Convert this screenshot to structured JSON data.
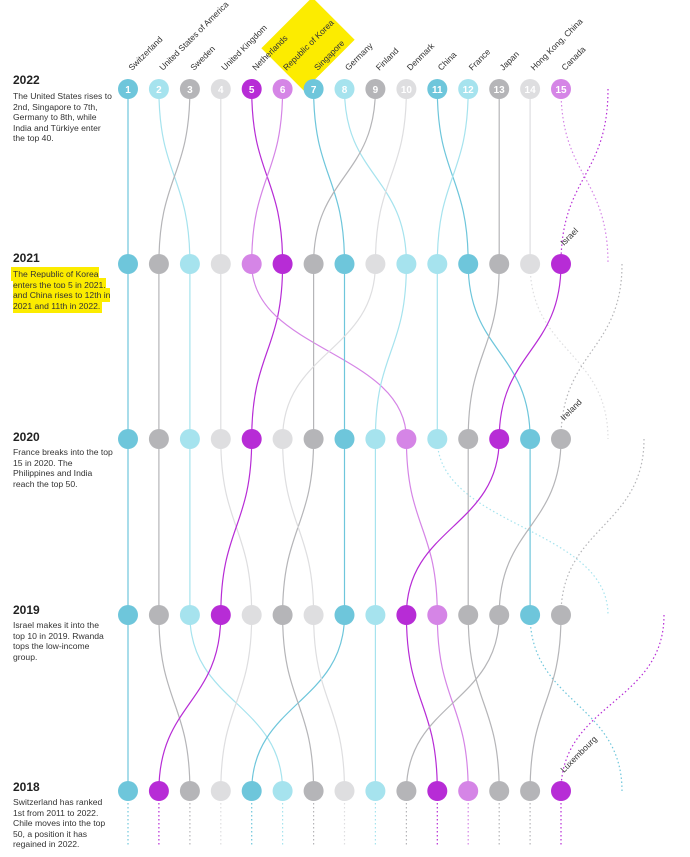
{
  "colors": {
    "blue": "#6ec6db",
    "light_blue": "#a6e3ee",
    "gray": "#b5b5b8",
    "light_gray": "#dedee0",
    "purple": "#b72cd6",
    "light_purple": "#d585e6",
    "highlight": "#fcec00"
  },
  "chart_data": {
    "type": "bump",
    "ranks": [
      1,
      2,
      3,
      4,
      5,
      6,
      7,
      8,
      9,
      10,
      11,
      12,
      13,
      14,
      15
    ],
    "years": [
      "2022",
      "2021",
      "2020",
      "2019",
      "2018"
    ],
    "top_labels": [
      "Switzerland",
      "United States of America",
      "Sweden",
      "United Kingdom",
      "Netherlands",
      "Republic of Korea",
      "Singapore",
      "Germany",
      "Finland",
      "Denmark",
      "China",
      "France",
      "Japan",
      "Hong Kong, China",
      "Canada"
    ],
    "entry_labels": [
      {
        "text": "Israel",
        "year": "2021",
        "rank": 15
      },
      {
        "text": "Ireland",
        "year": "2020",
        "rank": 15
      },
      {
        "text": "Luxembourg",
        "year": "2018",
        "rank": 15
      }
    ],
    "series": [
      {
        "color": "blue",
        "ranks": [
          1,
          1,
          1,
          1,
          1
        ]
      },
      {
        "color": "light_blue",
        "ranks": [
          2,
          3,
          3,
          3,
          6
        ]
      },
      {
        "color": "gray",
        "ranks": [
          3,
          2,
          2,
          2,
          3
        ]
      },
      {
        "color": "light_gray",
        "ranks": [
          4,
          4,
          4,
          5,
          4
        ]
      },
      {
        "color": "purple",
        "ranks": [
          5,
          6,
          5,
          4,
          2
        ]
      },
      {
        "color": "light_purple",
        "ranks": [
          6,
          5,
          10,
          11,
          12
        ]
      },
      {
        "color": "blue",
        "ranks": [
          7,
          8,
          8,
          8,
          5
        ]
      },
      {
        "color": "light_blue",
        "ranks": [
          8,
          10,
          9,
          9,
          9
        ]
      },
      {
        "color": "gray",
        "ranks": [
          9,
          7,
          7,
          6,
          7
        ]
      },
      {
        "color": "light_gray",
        "ranks": [
          10,
          9,
          6,
          7,
          8
        ]
      },
      {
        "color": "blue",
        "ranks": [
          11,
          12,
          14,
          14,
          17
        ]
      },
      {
        "color": "light_blue",
        "ranks": [
          12,
          11,
          11,
          16,
          16
        ]
      },
      {
        "color": "gray",
        "ranks": [
          13,
          13,
          12,
          12,
          13
        ]
      },
      {
        "color": "light_gray",
        "ranks": [
          14,
          14,
          16,
          17,
          18
        ]
      },
      {
        "color": "light_purple",
        "ranks": [
          15,
          16,
          17,
          18,
          19
        ]
      },
      {
        "color": "purple",
        "ranks": [
          16,
          15,
          13,
          10,
          11
        ]
      },
      {
        "color": "gray",
        "ranks": [
          17,
          17,
          15,
          13,
          10
        ]
      },
      {
        "color": "gray",
        "ranks": [
          18,
          18,
          18,
          15,
          14
        ]
      },
      {
        "color": "purple",
        "ranks": [
          19,
          19,
          19,
          19,
          15
        ]
      }
    ]
  },
  "sidebar": {
    "y2022": {
      "year": "2022",
      "note": "The United States rises to 2nd, Singapore to 7th, Germany to 8th, while India and Türkiye enter the top 40."
    },
    "y2021": {
      "year": "2021",
      "note": "The Republic of Korea enters the top 5 in 2021, and China rises to 12th in 2021 and 11th in 2022."
    },
    "y2020": {
      "year": "2020",
      "note": "France breaks into the top 15 in 2020. The Philippines and India reach the top 50."
    },
    "y2019": {
      "year": "2019",
      "note": "Israel makes it into the top 10 in 2019. Rwanda tops the low-income group."
    },
    "y2018": {
      "year": "2018",
      "note": "Switzerland has ranked 1st from 2011 to 2022. Chile moves into the top 50, a position it has regained in 2022."
    }
  }
}
